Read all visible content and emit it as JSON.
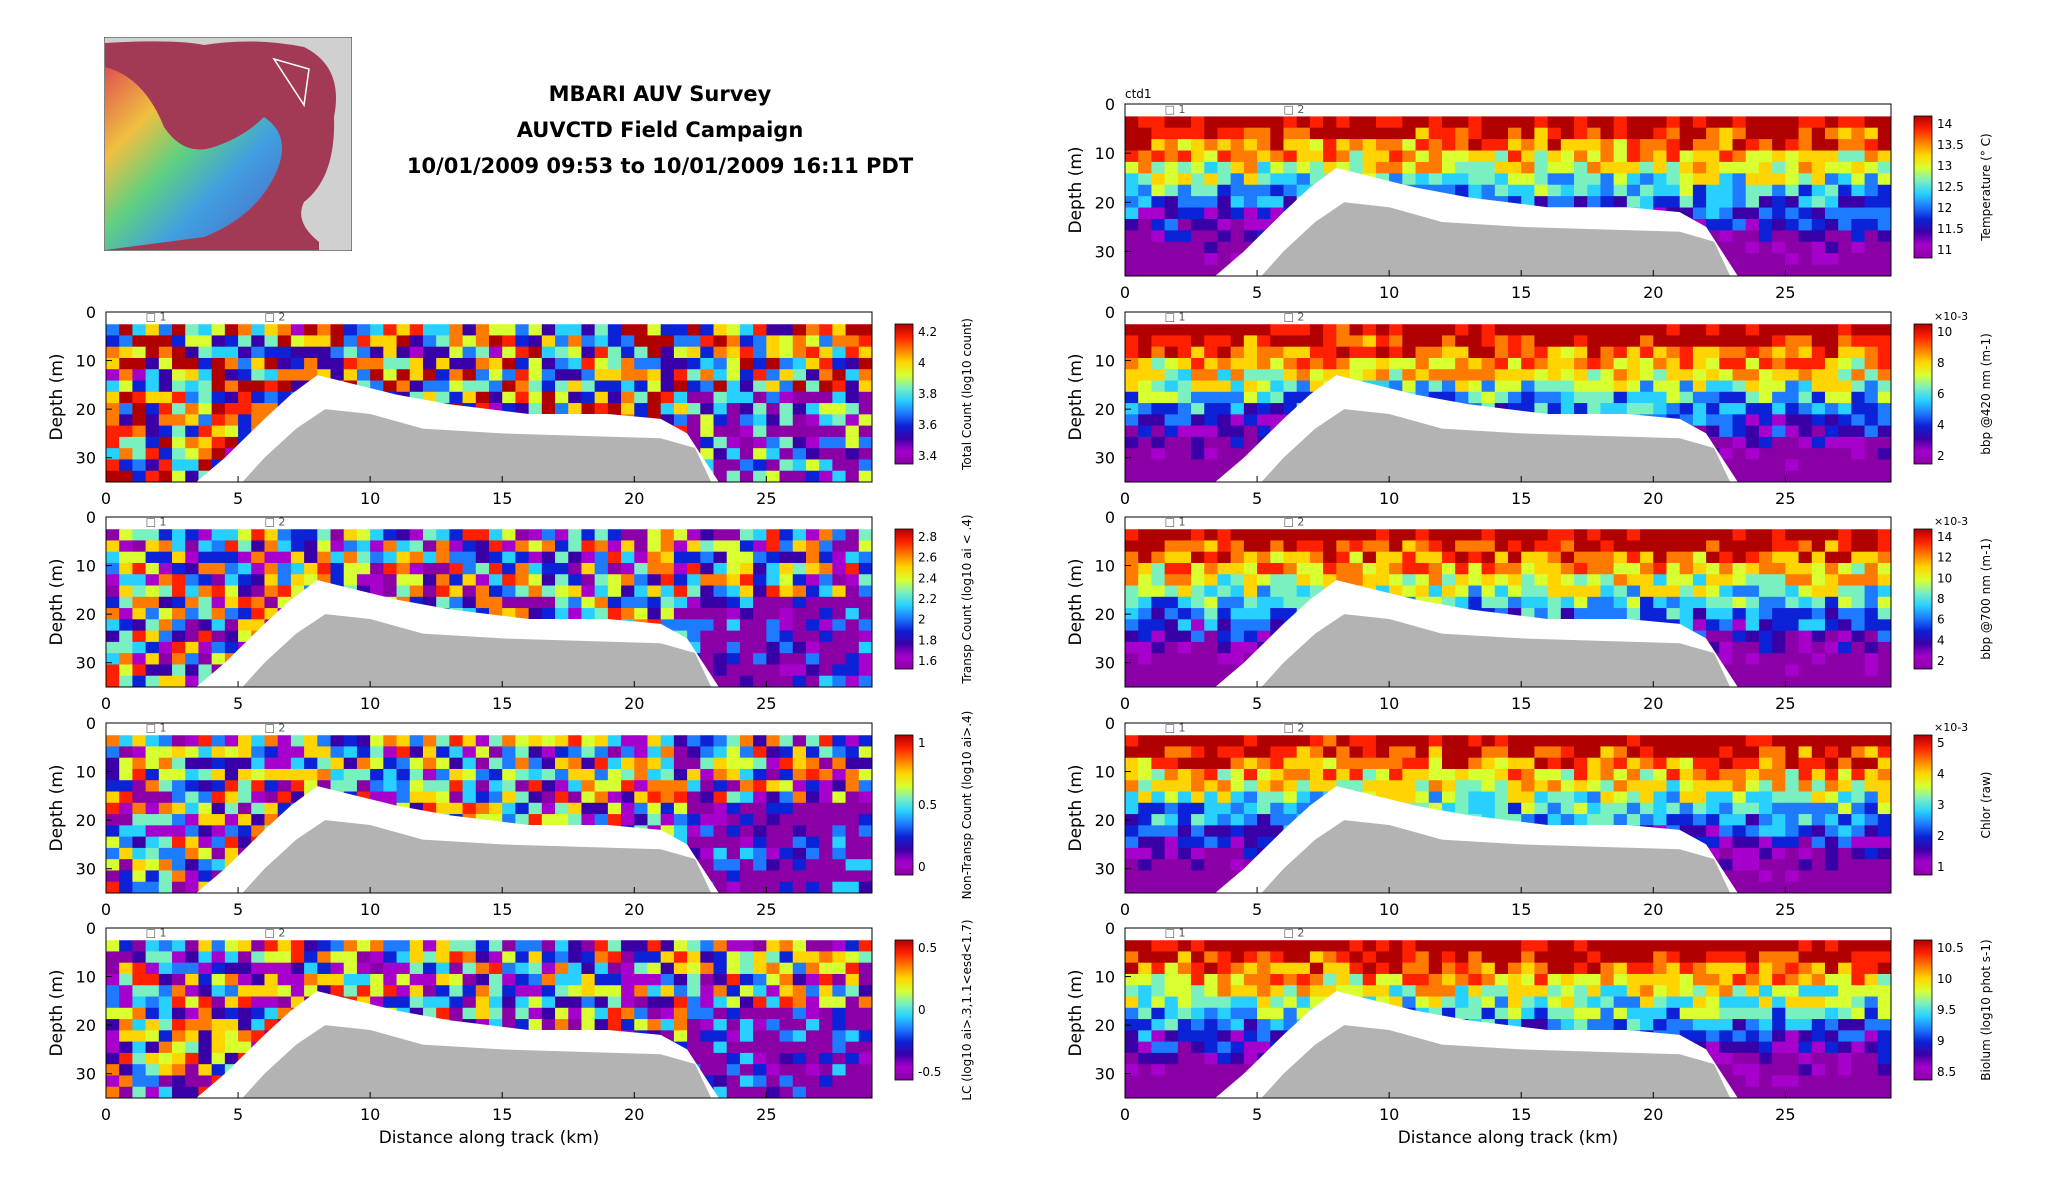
{
  "header": {
    "title": "MBARI AUV Survey",
    "subtitle": "AUVCTD Field Campaign",
    "date_range": "10/01/2009 09:53 to 10/01/2009 16:11 PDT"
  },
  "colors": {
    "bottom_fill": "#b3b3b3",
    "colormap": [
      "#8b00a6",
      "#a800cc",
      "#3a00a8",
      "#0b22d6",
      "#1e7bff",
      "#28d0ff",
      "#7af0c0",
      "#d8ff30",
      "#ffd400",
      "#ff7a00",
      "#ff2000",
      "#b00000"
    ]
  },
  "chart_data": [
    {
      "type": "heatmap",
      "panel_label": "",
      "xlabel": "",
      "ylabel": "Depth (m)",
      "xlim": [
        0,
        29
      ],
      "ylim": [
        35,
        0
      ],
      "xticks": [
        0,
        5,
        10,
        15,
        20,
        25
      ],
      "yticks": [
        0,
        10,
        20,
        30
      ],
      "colorbar": {
        "label": "Total Count (log10 count)",
        "ticks": [
          "4.2",
          "4",
          "3.8",
          "3.6",
          "3.4"
        ],
        "exponent": ""
      },
      "waypoints": [
        {
          "x": 1.5,
          "label": "1"
        },
        {
          "x": 6,
          "label": "2"
        }
      ]
    },
    {
      "type": "heatmap",
      "panel_label": "",
      "xlabel": "",
      "ylabel": "Depth (m)",
      "xlim": [
        0,
        29
      ],
      "ylim": [
        35,
        0
      ],
      "xticks": [
        0,
        5,
        10,
        15,
        20,
        25
      ],
      "yticks": [
        0,
        10,
        20,
        30
      ],
      "colorbar": {
        "label": "Transp Count (log10 ai < .4)",
        "ticks": [
          "2.8",
          "2.6",
          "2.4",
          "2.2",
          "2",
          "1.8",
          "1.6"
        ],
        "exponent": ""
      },
      "waypoints": [
        {
          "x": 1.5,
          "label": "1"
        },
        {
          "x": 6,
          "label": "2"
        }
      ]
    },
    {
      "type": "heatmap",
      "panel_label": "",
      "xlabel": "",
      "ylabel": "Depth (m)",
      "xlim": [
        0,
        29
      ],
      "ylim": [
        35,
        0
      ],
      "xticks": [
        0,
        5,
        10,
        15,
        20,
        25
      ],
      "yticks": [
        0,
        10,
        20,
        30
      ],
      "colorbar": {
        "label": "Non-Transp Count (log10 ai>.4)",
        "ticks": [
          "1",
          "0.5",
          "0"
        ],
        "exponent": ""
      },
      "waypoints": [
        {
          "x": 1.5,
          "label": "1"
        },
        {
          "x": 6,
          "label": "2"
        }
      ]
    },
    {
      "type": "heatmap",
      "panel_label": "",
      "xlabel": "Distance along track (km)",
      "ylabel": "Depth (m)",
      "xlim": [
        0,
        29
      ],
      "ylim": [
        35,
        0
      ],
      "xticks": [
        0,
        5,
        10,
        15,
        20,
        25
      ],
      "yticks": [
        0,
        10,
        20,
        30
      ],
      "colorbar": {
        "label": "LC (log10 ai>.3,1.1<esd<1.7)",
        "ticks": [
          "0.5",
          "0",
          "-0.5"
        ],
        "exponent": ""
      },
      "waypoints": [
        {
          "x": 1.5,
          "label": "1"
        },
        {
          "x": 6,
          "label": "2"
        }
      ]
    },
    {
      "type": "heatmap",
      "panel_label": "ctd1",
      "xlabel": "",
      "ylabel": "Depth (m)",
      "xlim": [
        0,
        29
      ],
      "ylim": [
        35,
        0
      ],
      "xticks": [
        0,
        5,
        10,
        15,
        20,
        25
      ],
      "yticks": [
        0,
        10,
        20,
        30
      ],
      "colorbar": {
        "label": "Temperature (° C)",
        "ticks": [
          "14",
          "13.5",
          "13",
          "12.5",
          "12",
          "11.5",
          "11"
        ],
        "exponent": ""
      },
      "waypoints": [
        {
          "x": 1.5,
          "label": "1"
        },
        {
          "x": 6,
          "label": "2"
        }
      ]
    },
    {
      "type": "heatmap",
      "panel_label": "",
      "xlabel": "",
      "ylabel": "Depth (m)",
      "xlim": [
        0,
        29
      ],
      "ylim": [
        35,
        0
      ],
      "xticks": [
        0,
        5,
        10,
        15,
        20,
        25
      ],
      "yticks": [
        0,
        10,
        20,
        30
      ],
      "colorbar": {
        "label": "bbp @420 nm (m-1)",
        "ticks": [
          "10",
          "8",
          "6",
          "4",
          "2"
        ],
        "exponent": "×10-3"
      },
      "waypoints": [
        {
          "x": 1.5,
          "label": "1"
        },
        {
          "x": 6,
          "label": "2"
        }
      ]
    },
    {
      "type": "heatmap",
      "panel_label": "",
      "xlabel": "",
      "ylabel": "Depth (m)",
      "xlim": [
        0,
        29
      ],
      "ylim": [
        35,
        0
      ],
      "xticks": [
        0,
        5,
        10,
        15,
        20,
        25
      ],
      "yticks": [
        0,
        10,
        20,
        30
      ],
      "colorbar": {
        "label": "bbp @700 nm (m-1)",
        "ticks": [
          "14",
          "12",
          "10",
          "8",
          "6",
          "4",
          "2"
        ],
        "exponent": "×10-3"
      },
      "waypoints": [
        {
          "x": 1.5,
          "label": "1"
        },
        {
          "x": 6,
          "label": "2"
        }
      ]
    },
    {
      "type": "heatmap",
      "panel_label": "",
      "xlabel": "",
      "ylabel": "Depth (m)",
      "xlim": [
        0,
        29
      ],
      "ylim": [
        35,
        0
      ],
      "xticks": [
        0,
        5,
        10,
        15,
        20,
        25
      ],
      "yticks": [
        0,
        10,
        20,
        30
      ],
      "colorbar": {
        "label": "Chlor (raw)",
        "ticks": [
          "5",
          "4",
          "3",
          "2",
          "1"
        ],
        "exponent": "×10-3"
      },
      "waypoints": [
        {
          "x": 1.5,
          "label": "1"
        },
        {
          "x": 6,
          "label": "2"
        }
      ]
    },
    {
      "type": "heatmap",
      "panel_label": "",
      "xlabel": "Distance along track (km)",
      "ylabel": "Depth (m)",
      "xlim": [
        0,
        29
      ],
      "ylim": [
        35,
        0
      ],
      "xticks": [
        0,
        5,
        10,
        15,
        20,
        25
      ],
      "yticks": [
        0,
        10,
        20,
        30
      ],
      "colorbar": {
        "label": "Biolum (log10 phot s-1)",
        "ticks": [
          "10.5",
          "10",
          "9.5",
          "9",
          "8.5"
        ],
        "exponent": ""
      },
      "waypoints": [
        {
          "x": 1.5,
          "label": "1"
        },
        {
          "x": 6,
          "label": "2"
        }
      ]
    }
  ]
}
